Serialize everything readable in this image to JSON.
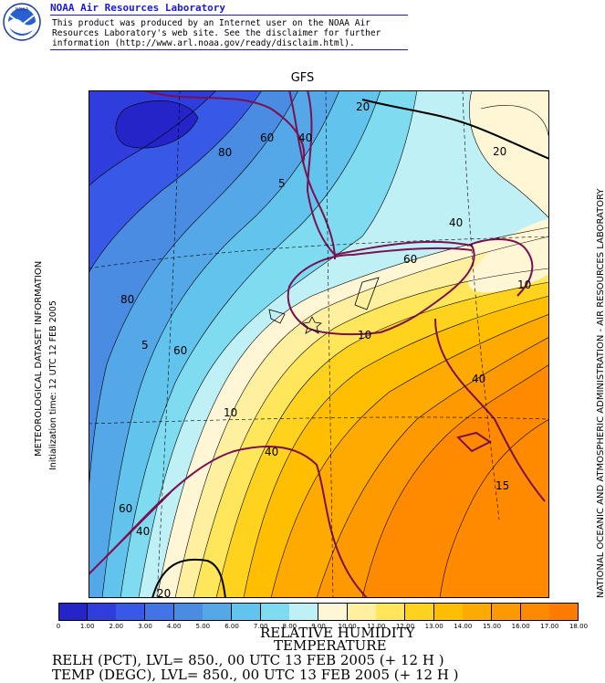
{
  "header": {
    "org": "NOAA Air Resources Laboratory",
    "disclaimer": [
      "This product was produced by an Internet user on the NOAA Air",
      "Resources Laboratory's web site.  See the disclaimer for further",
      "information (http://www.arl.noaa.gov/ready/disclaim.html)."
    ],
    "logo_text": "NOAA",
    "logo_icon": "noaa-seal-icon"
  },
  "map": {
    "model": "GFS",
    "station_marker_icon": "star-marker-icon",
    "temp_labels": [
      "20",
      "20",
      "5",
      "5",
      "10",
      "10",
      "15",
      "10",
      "20"
    ],
    "rh_labels": [
      "80",
      "60",
      "40",
      "40",
      "60",
      "80",
      "60",
      "40",
      "40",
      "60",
      "40"
    ]
  },
  "side_text": {
    "left_title": "METEOROLOGICAL DATASET INFORMATION",
    "left_init": "Initialization time: 12 UTC 12 FEB 2005",
    "right": "NATIONAL OCEANIC AND ATMOSPHERIC ADMINISTRATION - AIR RESOURCES LABORATORY"
  },
  "colorbar": {
    "ticks": [
      "0",
      "1.00",
      "2.00",
      "3.00",
      "4.00",
      "5.00",
      "6.00",
      "7.00",
      "8.00",
      "9.00",
      "10.00",
      "11.00",
      "12.00",
      "13.00",
      "14.00",
      "15.00",
      "16.00",
      "17.00",
      "18.00"
    ],
    "colors": [
      "#2424c8",
      "#2f3ddc",
      "#3858e6",
      "#4274e6",
      "#4a8ce2",
      "#55a8e8",
      "#62c4ec",
      "#7edbf0",
      "#bff0f6",
      "#fff6d6",
      "#fff0a0",
      "#ffe65a",
      "#ffd21e",
      "#ffbe00",
      "#ffaa00",
      "#ff9900",
      "#ff8a00",
      "#ff7c00"
    ]
  },
  "footer": {
    "field1": "RELATIVE HUMIDITY",
    "field2": "TEMPERATURE",
    "line1": "RELH (PCT),  LVL= 850., 00 UTC 13 FEB 2005 (+ 12 H )",
    "line2": "TEMP (DEGC),  LVL= 850., 00 UTC 13 FEB 2005 (+ 12 H )"
  }
}
